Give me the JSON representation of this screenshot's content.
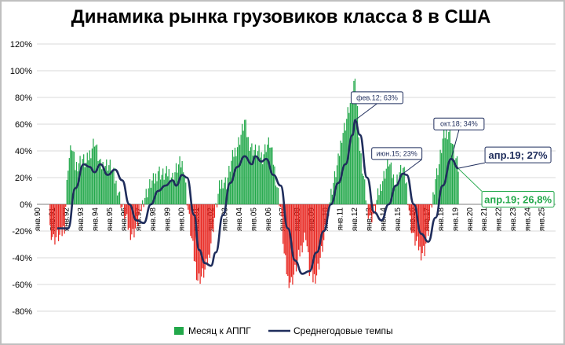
{
  "chart_data": {
    "type": "bar",
    "title": "Динамика рынка грузовиков класса 8 в США",
    "ylim": [
      -80,
      120
    ],
    "y_ticks": [
      "-80%",
      "-60%",
      "-40%",
      "-20%",
      "0%",
      "20%",
      "40%",
      "60%",
      "80%",
      "100%",
      "120%"
    ],
    "x_range": [
      "1990-01",
      "2026-01"
    ],
    "x_ticks": [
      "янв.90",
      "янв.91",
      "янв.92",
      "янв.93",
      "янв.94",
      "янв.95",
      "янв.96",
      "янв.97",
      "янв.98",
      "янв.99",
      "янв.00",
      "янв.01",
      "янв.02",
      "янв.03",
      "янв.04",
      "янв.05",
      "янв.06",
      "янв.07",
      "янв.08",
      "янв.09",
      "янв.10",
      "янв.11",
      "янв.12",
      "янв.13",
      "янв.14",
      "янв.15",
      "янв.16",
      "янв.17",
      "янв.18",
      "янв.19",
      "янв.20",
      "янв.21",
      "янв.22",
      "янв.23",
      "янв.24",
      "янв.25"
    ],
    "colors": {
      "positive_bar": "#22a84a",
      "negative_bar": "#e8251f",
      "line": "#1f2d5c"
    },
    "bar_series": {
      "name": "Месяц к АППГ",
      "anchors": [
        [
          "1990-12",
          -18
        ],
        [
          "1991-03",
          -26
        ],
        [
          "1991-06",
          -24
        ],
        [
          "1991-09",
          -24
        ],
        [
          "1991-12",
          -16
        ],
        [
          "1992-03",
          30
        ],
        [
          "1992-06",
          44
        ],
        [
          "1992-09",
          28
        ],
        [
          "1992-12",
          32
        ],
        [
          "1993-03",
          34
        ],
        [
          "1993-06",
          30
        ],
        [
          "1993-09",
          38
        ],
        [
          "1994-01",
          48
        ],
        [
          "1994-03",
          40
        ],
        [
          "1994-06",
          28
        ],
        [
          "1994-09",
          30
        ],
        [
          "1994-12",
          30
        ],
        [
          "1995-03",
          28
        ],
        [
          "1995-06",
          18
        ],
        [
          "1995-09",
          10
        ],
        [
          "1995-12",
          -2
        ],
        [
          "1996-03",
          -10
        ],
        [
          "1996-06",
          -20
        ],
        [
          "1996-09",
          -22
        ],
        [
          "1996-12",
          -16
        ],
        [
          "1997-03",
          -6
        ],
        [
          "1997-06",
          4
        ],
        [
          "1997-09",
          10
        ],
        [
          "1997-12",
          16
        ],
        [
          "1998-03",
          18
        ],
        [
          "1998-06",
          26
        ],
        [
          "1998-09",
          22
        ],
        [
          "1998-12",
          22
        ],
        [
          "1999-03",
          24
        ],
        [
          "1999-06",
          20
        ],
        [
          "1999-09",
          26
        ],
        [
          "1999-12",
          30
        ],
        [
          "2000-03",
          30
        ],
        [
          "2000-06",
          4
        ],
        [
          "2000-09",
          -20
        ],
        [
          "2000-12",
          -40
        ],
        [
          "2001-03",
          -56
        ],
        [
          "2001-06",
          -54
        ],
        [
          "2001-09",
          -50
        ],
        [
          "2001-12",
          -40
        ],
        [
          "2002-03",
          -22
        ],
        [
          "2002-06",
          -4
        ],
        [
          "2002-09",
          12
        ],
        [
          "2002-12",
          18
        ],
        [
          "2003-03",
          16
        ],
        [
          "2003-06",
          28
        ],
        [
          "2003-09",
          38
        ],
        [
          "2003-12",
          44
        ],
        [
          "2004-03",
          52
        ],
        [
          "2004-06",
          62
        ],
        [
          "2004-09",
          48
        ],
        [
          "2004-12",
          42
        ],
        [
          "2005-03",
          40
        ],
        [
          "2005-06",
          38
        ],
        [
          "2005-09",
          36
        ],
        [
          "2005-12",
          44
        ],
        [
          "2006-03",
          46
        ],
        [
          "2006-06",
          32
        ],
        [
          "2006-09",
          14
        ],
        [
          "2006-12",
          -2
        ],
        [
          "2007-03",
          -38
        ],
        [
          "2007-06",
          -56
        ],
        [
          "2007-09",
          -58
        ],
        [
          "2007-12",
          -50
        ],
        [
          "2008-03",
          -40
        ],
        [
          "2008-06",
          -30
        ],
        [
          "2008-09",
          -22
        ],
        [
          "2008-12",
          -50
        ],
        [
          "2009-03",
          -56
        ],
        [
          "2009-06",
          -52
        ],
        [
          "2009-09",
          -40
        ],
        [
          "2009-12",
          -28
        ],
        [
          "2010-03",
          -8
        ],
        [
          "2010-06",
          8
        ],
        [
          "2010-09",
          20
        ],
        [
          "2010-12",
          32
        ],
        [
          "2011-03",
          52
        ],
        [
          "2011-06",
          60
        ],
        [
          "2011-09",
          72
        ],
        [
          "2011-12",
          80
        ],
        [
          "2012-02",
          100
        ],
        [
          "2012-06",
          40
        ],
        [
          "2012-09",
          20
        ],
        [
          "2012-12",
          -2
        ],
        [
          "2013-03",
          -10
        ],
        [
          "2013-06",
          -6
        ],
        [
          "2013-09",
          6
        ],
        [
          "2013-12",
          16
        ],
        [
          "2014-03",
          24
        ],
        [
          "2014-06",
          32
        ],
        [
          "2014-09",
          22
        ],
        [
          "2014-12",
          16
        ],
        [
          "2015-03",
          24
        ],
        [
          "2015-06",
          26
        ],
        [
          "2015-09",
          14
        ],
        [
          "2015-12",
          -12
        ],
        [
          "2016-03",
          -26
        ],
        [
          "2016-06",
          -30
        ],
        [
          "2016-09",
          -36
        ],
        [
          "2016-12",
          -34
        ],
        [
          "2017-03",
          -20
        ],
        [
          "2017-06",
          0
        ],
        [
          "2017-09",
          20
        ],
        [
          "2017-12",
          30
        ],
        [
          "2018-03",
          48
        ],
        [
          "2018-06",
          54
        ],
        [
          "2018-09",
          56
        ],
        [
          "2018-12",
          40
        ],
        [
          "2019-03",
          30
        ],
        [
          "2019-04",
          26.8
        ]
      ]
    },
    "line_series": {
      "name": "Среднегодовые темпы",
      "points": [
        [
          "1991-06",
          -18
        ],
        [
          "1992-03",
          -18
        ],
        [
          "1992-09",
          12
        ],
        [
          "1993-04",
          30
        ],
        [
          "1993-09",
          28
        ],
        [
          "1994-01",
          24
        ],
        [
          "1994-06",
          30
        ],
        [
          "1994-12",
          22
        ],
        [
          "1995-06",
          26
        ],
        [
          "1995-12",
          18
        ],
        [
          "1996-06",
          0
        ],
        [
          "1996-12",
          -12
        ],
        [
          "1997-06",
          -14
        ],
        [
          "1997-12",
          0
        ],
        [
          "1998-06",
          10
        ],
        [
          "1998-12",
          14
        ],
        [
          "1999-06",
          18
        ],
        [
          "1999-09",
          14
        ],
        [
          "2000-02",
          22
        ],
        [
          "2000-06",
          20
        ],
        [
          "2000-12",
          -8
        ],
        [
          "2001-04",
          -34
        ],
        [
          "2001-09",
          -44
        ],
        [
          "2002-02",
          -46
        ],
        [
          "2002-06",
          -36
        ],
        [
          "2002-12",
          -8
        ],
        [
          "2003-06",
          16
        ],
        [
          "2003-12",
          28
        ],
        [
          "2004-06",
          36
        ],
        [
          "2004-12",
          30
        ],
        [
          "2005-03",
          36
        ],
        [
          "2005-08",
          32
        ],
        [
          "2005-12",
          34
        ],
        [
          "2006-06",
          22
        ],
        [
          "2006-12",
          14
        ],
        [
          "2007-06",
          -18
        ],
        [
          "2007-12",
          -42
        ],
        [
          "2008-06",
          -52
        ],
        [
          "2008-12",
          -50
        ],
        [
          "2009-06",
          -36
        ],
        [
          "2009-12",
          -20
        ],
        [
          "2010-06",
          0
        ],
        [
          "2010-12",
          16
        ],
        [
          "2011-06",
          30
        ],
        [
          "2011-12",
          52
        ],
        [
          "2012-02",
          63
        ],
        [
          "2012-06",
          52
        ],
        [
          "2012-12",
          20
        ],
        [
          "2013-06",
          -6
        ],
        [
          "2013-12",
          -12
        ],
        [
          "2014-06",
          0
        ],
        [
          "2014-12",
          14
        ],
        [
          "2015-06",
          23
        ],
        [
          "2015-09",
          22
        ],
        [
          "2016-03",
          0
        ],
        [
          "2016-09",
          -22
        ],
        [
          "2017-03",
          -28
        ],
        [
          "2017-09",
          -10
        ],
        [
          "2018-03",
          14
        ],
        [
          "2018-10",
          34
        ],
        [
          "2019-04",
          27
        ]
      ]
    },
    "annotations": [
      {
        "x": "2012-02",
        "y": 63,
        "text": "фев.12; 63%",
        "style": "small"
      },
      {
        "x": "2015-06",
        "y": 23,
        "text": "июн.15; 23%",
        "style": "small"
      },
      {
        "x": "2018-10",
        "y": 34,
        "text": "окт.18; 34%",
        "style": "small"
      },
      {
        "x": "2019-04",
        "y": 27,
        "text": "апр.19; 27%",
        "style": "big"
      },
      {
        "x": "2019-04",
        "y": 26.8,
        "text": "апр.19; 26,8%",
        "style": "green"
      }
    ],
    "legend": {
      "position": "bottom",
      "entries": [
        "Месяц к АППГ",
        "Среднегодовые темпы"
      ]
    }
  }
}
